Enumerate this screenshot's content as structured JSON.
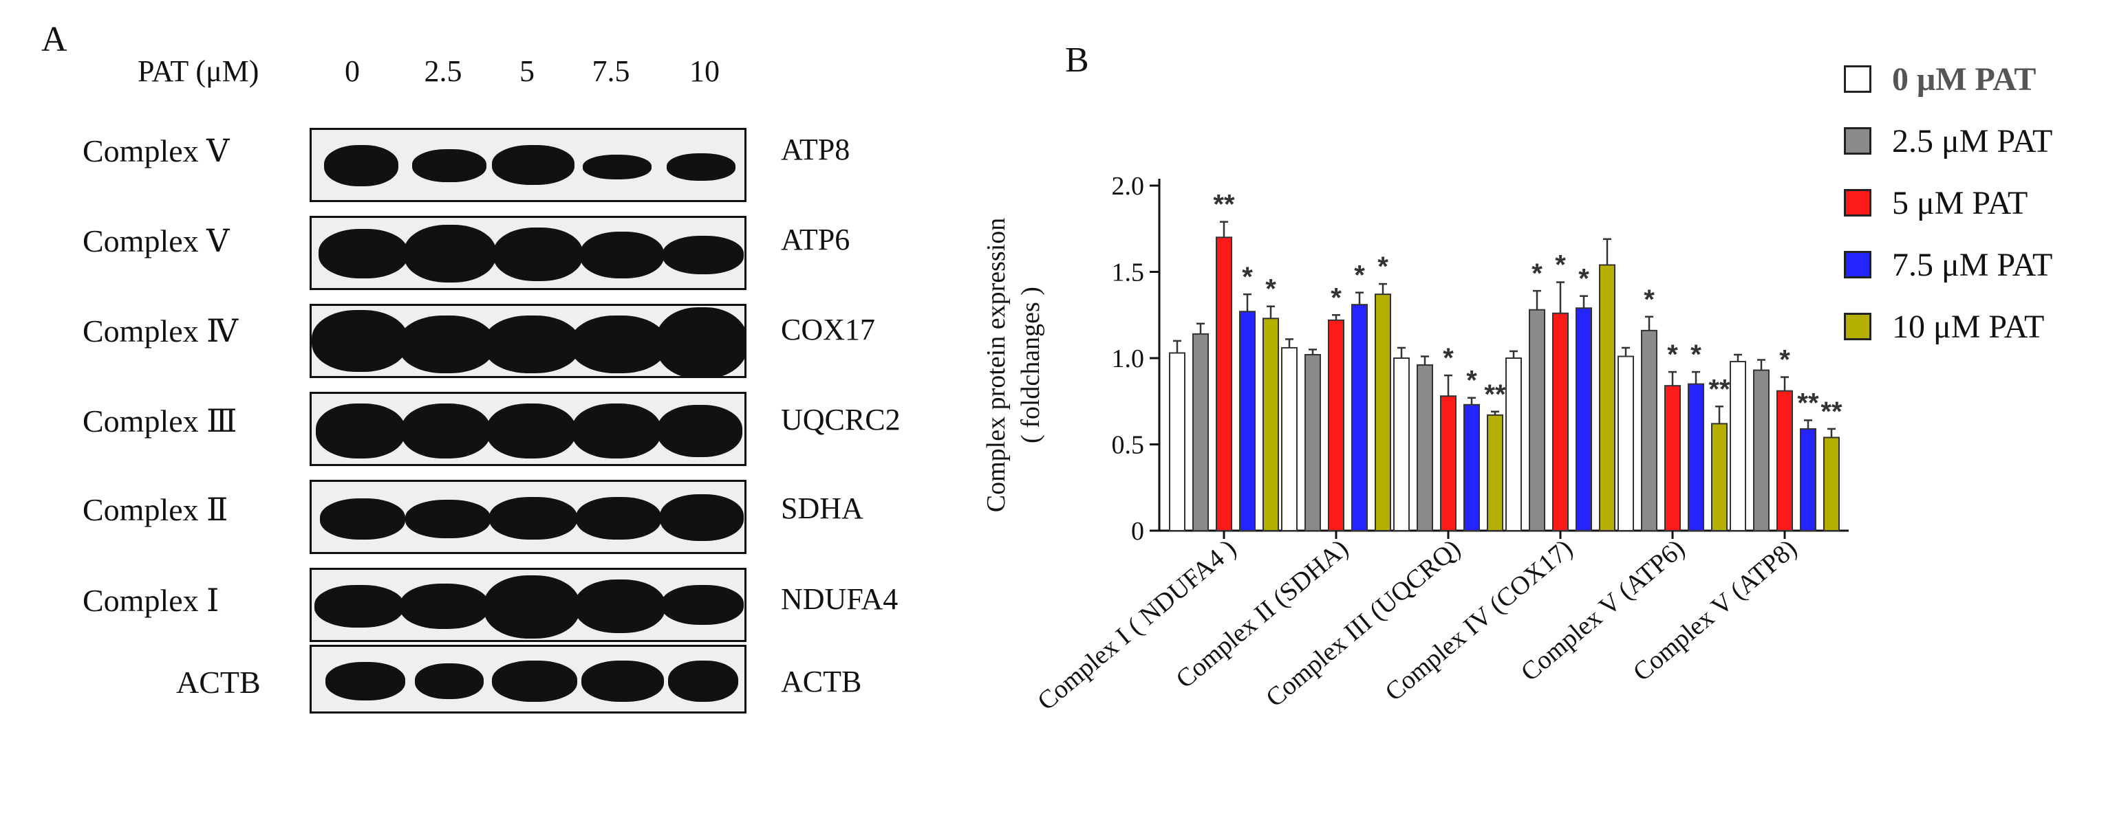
{
  "panel_a": {
    "letter": "A",
    "pat_label": "PAT (μM)",
    "concentrations": [
      "0",
      "2.5",
      "5",
      "7.5",
      "10"
    ],
    "rows": [
      {
        "left": "Complex Ⅴ",
        "right": "ATP8"
      },
      {
        "left": "Complex Ⅴ",
        "right": "ATP6"
      },
      {
        "left": "Complex Ⅳ",
        "right": "COX17"
      },
      {
        "left": "Complex Ⅲ",
        "right": "UQCRC2"
      },
      {
        "left": "Complex Ⅱ",
        "right": "SDHA"
      },
      {
        "left": "Complex Ⅰ",
        "right": "NDUFA4"
      },
      {
        "left": "ACTB",
        "right": "ACTB"
      }
    ]
  },
  "panel_b": {
    "letter": "B",
    "legend": [
      "0 μM PAT",
      "2.5 μM PAT",
      "5 μM PAT",
      "7.5 μM PAT",
      "10 μM PAT"
    ]
  },
  "colors": {
    "series": [
      "#ffffff",
      "#8a8a8a",
      "#ff1a1a",
      "#2424ff",
      "#b5b000"
    ]
  },
  "chart_data": {
    "type": "bar",
    "title": "",
    "xlabel": "",
    "ylabel": [
      "Complex  protein expression",
      "( foldchanges )"
    ],
    "ylim": [
      0,
      2.0
    ],
    "yticks": [
      "0",
      "0.5",
      "1.0",
      "1.5",
      "2.0"
    ],
    "categories": [
      "Complex I ( NDUFA4 )",
      "Complex II (SDHA)",
      "Complex III (UQCRQ)",
      "Complex IV (COX17)",
      "Complex V (ATP6)",
      "Complex V (ATP8)"
    ],
    "series": [
      {
        "name": "0 μM PAT",
        "values": [
          1.03,
          1.06,
          1.0,
          1.0,
          1.01,
          0.98
        ],
        "errors": [
          0.07,
          0.05,
          0.06,
          0.04,
          0.05,
          0.04
        ],
        "sig": [
          "",
          "",
          "",
          "",
          "",
          ""
        ]
      },
      {
        "name": "2.5 μM PAT",
        "values": [
          1.14,
          1.02,
          0.96,
          1.28,
          1.16,
          0.93
        ],
        "errors": [
          0.06,
          0.03,
          0.05,
          0.11,
          0.08,
          0.06
        ],
        "sig": [
          "",
          "",
          "",
          "*",
          "*",
          ""
        ]
      },
      {
        "name": "5 μM PAT",
        "values": [
          1.7,
          1.22,
          0.78,
          1.26,
          0.84,
          0.81
        ],
        "errors": [
          0.09,
          0.03,
          0.12,
          0.18,
          0.08,
          0.08
        ],
        "sig": [
          "**",
          "*",
          "*",
          "*",
          "*",
          "*"
        ]
      },
      {
        "name": "7.5 μM PAT",
        "values": [
          1.27,
          1.31,
          0.73,
          1.29,
          0.85,
          0.59
        ],
        "errors": [
          0.1,
          0.07,
          0.04,
          0.07,
          0.07,
          0.05
        ],
        "sig": [
          "*",
          "*",
          "*",
          "*",
          "*",
          "**"
        ]
      },
      {
        "name": "10 μM PAT",
        "values": [
          1.23,
          1.37,
          0.67,
          1.54,
          0.62,
          0.54
        ],
        "errors": [
          0.07,
          0.06,
          0.02,
          0.15,
          0.1,
          0.05
        ],
        "sig": [
          "*",
          "*",
          "**",
          "",
          "**",
          "**"
        ]
      }
    ]
  }
}
